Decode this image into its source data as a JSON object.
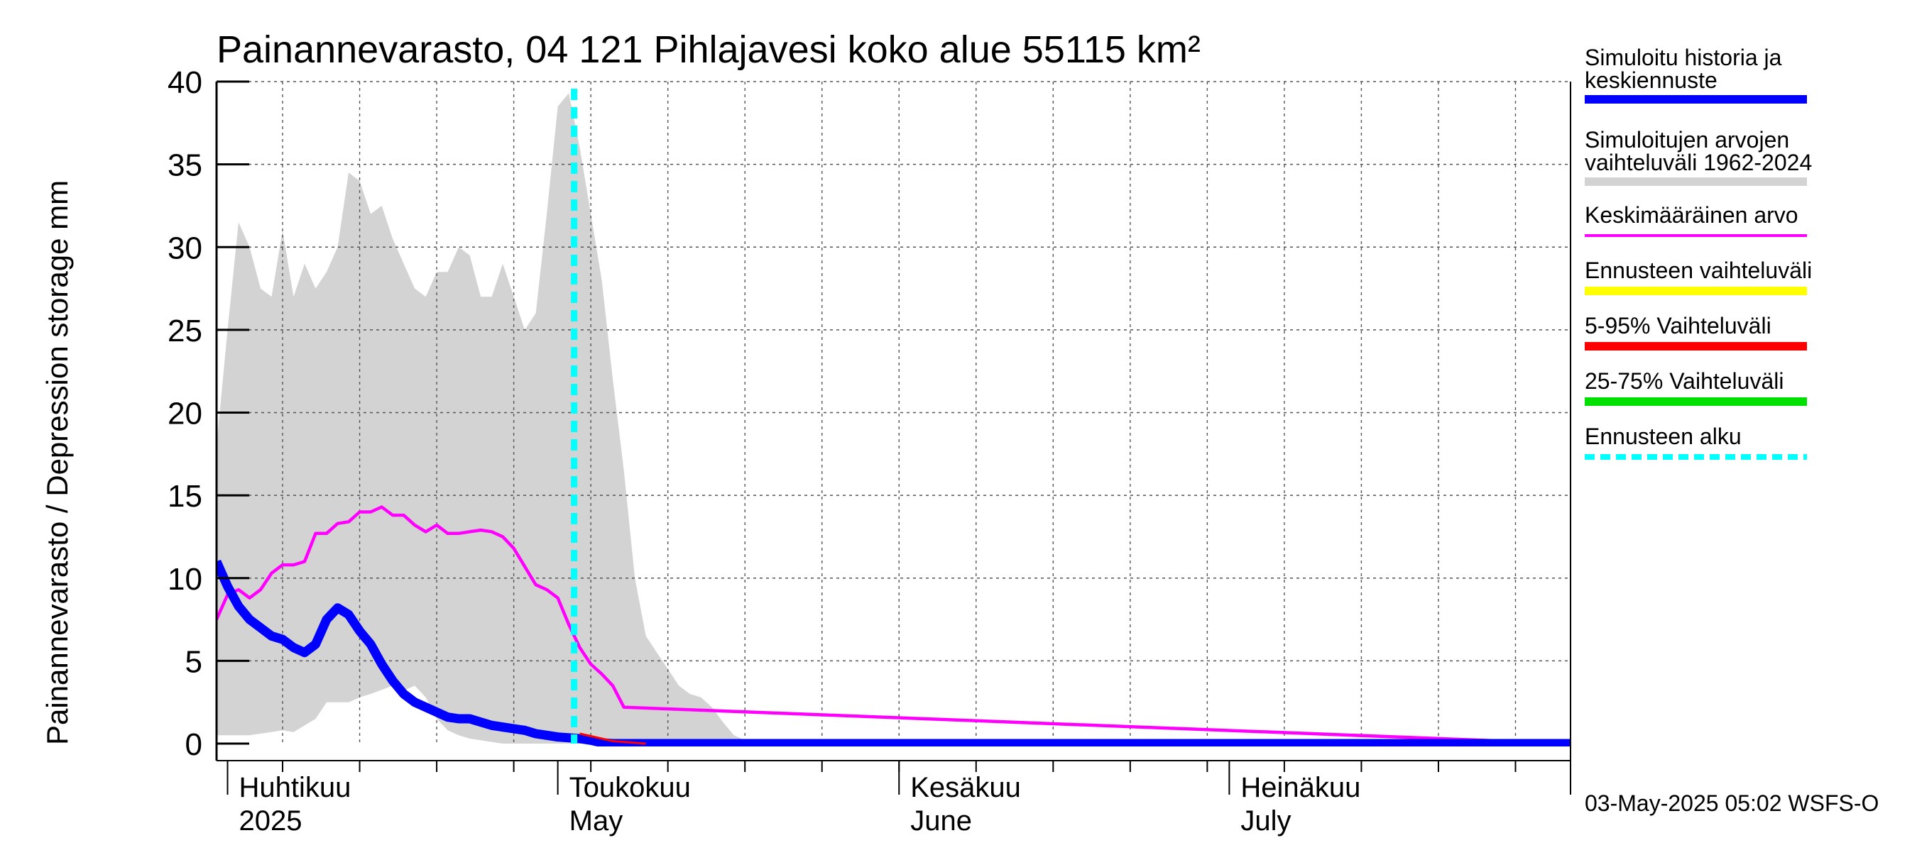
{
  "chart_data": {
    "type": "line",
    "title": "Painannevarasto, 04 121 Pihlajavesi koko alue 55115 km²",
    "ylabel": "Painannevarasto / Depression storage    mm",
    "ylim": [
      0,
      40
    ],
    "yticks": [
      "0",
      "5",
      "10",
      "15",
      "20",
      "25",
      "30",
      "35",
      "40"
    ],
    "grid": true,
    "legend_placement": "right",
    "month_labels": [
      {
        "line1": "Huhtikuu",
        "line2": "2025"
      },
      {
        "line1": "Toukokuu",
        "line2": "May"
      },
      {
        "line1": "Kesäkuu",
        "line2": "June"
      },
      {
        "line1": "Heinäkuu",
        "line2": "July"
      }
    ],
    "forecast_start": "2025-05-03",
    "band_upper": {
      "x": [
        "2025-03-31",
        "2025-04-01",
        "2025-04-02",
        "2025-04-03",
        "2025-04-04",
        "2025-04-05",
        "2025-04-06",
        "2025-04-07",
        "2025-04-08",
        "2025-04-09",
        "2025-04-10",
        "2025-04-11",
        "2025-04-12",
        "2025-04-13",
        "2025-04-14",
        "2025-04-15",
        "2025-04-16",
        "2025-04-17",
        "2025-04-18",
        "2025-04-19",
        "2025-04-20",
        "2025-04-21",
        "2025-04-22",
        "2025-04-23",
        "2025-04-24",
        "2025-04-25",
        "2025-04-26",
        "2025-04-27",
        "2025-04-28",
        "2025-04-29",
        "2025-04-30",
        "2025-05-01",
        "2025-05-02",
        "2025-05-03",
        "2025-05-04",
        "2025-05-05",
        "2025-05-06",
        "2025-05-07",
        "2025-05-08",
        "2025-05-09",
        "2025-05-10",
        "2025-05-11",
        "2025-05-12",
        "2025-05-13",
        "2025-05-14",
        "2025-05-15",
        "2025-05-16",
        "2025-05-17",
        "2025-05-18",
        "2025-05-19",
        "2025-05-20",
        "2025-05-21",
        "2025-05-22",
        "2025-05-23",
        "2025-05-24",
        "2025-05-25",
        "2025-05-26",
        "2025-05-27",
        "2025-05-28",
        "2025-05-29",
        "2025-05-30",
        "2025-06-15",
        "2025-08-01"
      ],
      "values": [
        18,
        25,
        31.5,
        30,
        27.5,
        27,
        31,
        27,
        29,
        27.5,
        28.5,
        30,
        34.5,
        34,
        32,
        32.5,
        30.5,
        29,
        27.5,
        27,
        28.5,
        28.5,
        30,
        29.5,
        27,
        27,
        29,
        27,
        25,
        26,
        32,
        38.5,
        39.3,
        36,
        32,
        28,
        22,
        16.5,
        10,
        6.5,
        5.5,
        4.5,
        3.5,
        3,
        2.8,
        2.2,
        1.3,
        0.5,
        0.2,
        0.1,
        0,
        0,
        0,
        0,
        0,
        0,
        0,
        0,
        0,
        0,
        0,
        0,
        0
      ]
    },
    "band_lower": {
      "x": [
        "2025-03-31",
        "2025-04-03",
        "2025-04-06",
        "2025-04-07",
        "2025-04-09",
        "2025-04-10",
        "2025-04-12",
        "2025-04-13",
        "2025-04-14",
        "2025-04-16",
        "2025-04-17",
        "2025-04-18",
        "2025-04-19",
        "2025-04-20",
        "2025-04-21",
        "2025-04-22",
        "2025-04-23",
        "2025-04-24",
        "2025-04-25",
        "2025-04-26",
        "2025-08-01"
      ],
      "values": [
        0.5,
        0.5,
        0.8,
        0.7,
        1.5,
        2.5,
        2.5,
        2.8,
        3,
        3.5,
        3.2,
        3.5,
        2.8,
        1.5,
        0.8,
        0.5,
        0.3,
        0.2,
        0.1,
        0,
        0
      ]
    },
    "series": [
      {
        "name": "Keskimääräinen arvo",
        "color": "#ff00ff",
        "x": [
          "2025-03-31",
          "2025-04-01",
          "2025-04-02",
          "2025-04-03",
          "2025-04-04",
          "2025-04-05",
          "2025-04-06",
          "2025-04-07",
          "2025-04-08",
          "2025-04-09",
          "2025-04-10",
          "2025-04-11",
          "2025-04-12",
          "2025-04-13",
          "2025-04-14",
          "2025-04-15",
          "2025-04-16",
          "2025-04-17",
          "2025-04-18",
          "2025-04-19",
          "2025-04-20",
          "2025-04-21",
          "2025-04-22",
          "2025-04-23",
          "2025-04-24",
          "2025-04-25",
          "2025-04-26",
          "2025-04-27",
          "2025-04-28",
          "2025-04-29",
          "2025-04-30",
          "2025-05-01",
          "2025-05-02",
          "2025-05-03",
          "2025-05-04",
          "2025-05-05",
          "2025-05-06",
          "2025-05-07",
          "2025-08-01"
        ],
        "values": [
          7.5,
          9,
          9.3,
          8.8,
          9.3,
          10.3,
          10.8,
          10.8,
          11,
          12.7,
          12.7,
          13.3,
          13.4,
          14,
          14,
          14.3,
          13.8,
          13.8,
          13.2,
          12.8,
          13.2,
          12.7,
          12.7,
          12.8,
          12.9,
          12.8,
          12.5,
          11.8,
          10.7,
          9.6,
          9.3,
          8.8,
          7.2,
          5.8,
          4.8,
          4.2,
          3.5,
          2.2,
          0
        ]
      },
      {
        "name": "Simuloitu historia ja keskiennuste",
        "color": "#0000ff",
        "x": [
          "2025-03-31",
          "2025-04-01",
          "2025-04-02",
          "2025-04-03",
          "2025-04-04",
          "2025-04-05",
          "2025-04-06",
          "2025-04-07",
          "2025-04-08",
          "2025-04-09",
          "2025-04-10",
          "2025-04-11",
          "2025-04-12",
          "2025-04-13",
          "2025-04-14",
          "2025-04-15",
          "2025-04-16",
          "2025-04-17",
          "2025-04-18",
          "2025-04-19",
          "2025-04-20",
          "2025-04-21",
          "2025-04-22",
          "2025-04-23",
          "2025-04-24",
          "2025-04-25",
          "2025-04-26",
          "2025-04-27",
          "2025-04-28",
          "2025-04-29",
          "2025-04-30",
          "2025-05-01",
          "2025-05-02",
          "2025-05-03",
          "2025-05-04",
          "2025-05-05",
          "2025-05-06",
          "2025-05-07",
          "2025-05-08",
          "2025-08-01"
        ],
        "values": [
          11,
          9.5,
          8.3,
          7.5,
          7,
          6.5,
          6.3,
          5.8,
          5.5,
          6,
          7.5,
          8.2,
          7.8,
          6.8,
          6,
          4.8,
          3.8,
          3,
          2.5,
          2.2,
          1.9,
          1.6,
          1.5,
          1.5,
          1.3,
          1.1,
          1,
          0.9,
          0.8,
          0.6,
          0.5,
          0.4,
          0.35,
          0.3,
          0.2,
          0.05,
          0,
          0,
          0,
          0
        ]
      }
    ],
    "legend": [
      {
        "label": "Simuloitu historia ja keskiennuste",
        "color": "#0000ff",
        "style": "solid",
        "width": 12
      },
      {
        "label": "Simuloitujen arvojen vaihteluväli 1962-2024",
        "color": "#d3d3d3",
        "style": "solid",
        "width": 12
      },
      {
        "label": "Keskimääräinen arvo",
        "color": "#ff00ff",
        "style": "solid",
        "width": 4
      },
      {
        "label": "Ennusteen vaihteluväli",
        "color": "#ffff00",
        "style": "solid",
        "width": 12
      },
      {
        "label": "5-95% Vaihteluväli",
        "color": "#ff0000",
        "style": "solid",
        "width": 12
      },
      {
        "label": "25-75% Vaihteluväli",
        "color": "#00e000",
        "style": "solid",
        "width": 12
      },
      {
        "label": "Ennusteen alku",
        "color": "#00ffff",
        "style": "dashed",
        "width": 8
      }
    ],
    "footer": "03-May-2025 05:02 WSFS-O"
  }
}
